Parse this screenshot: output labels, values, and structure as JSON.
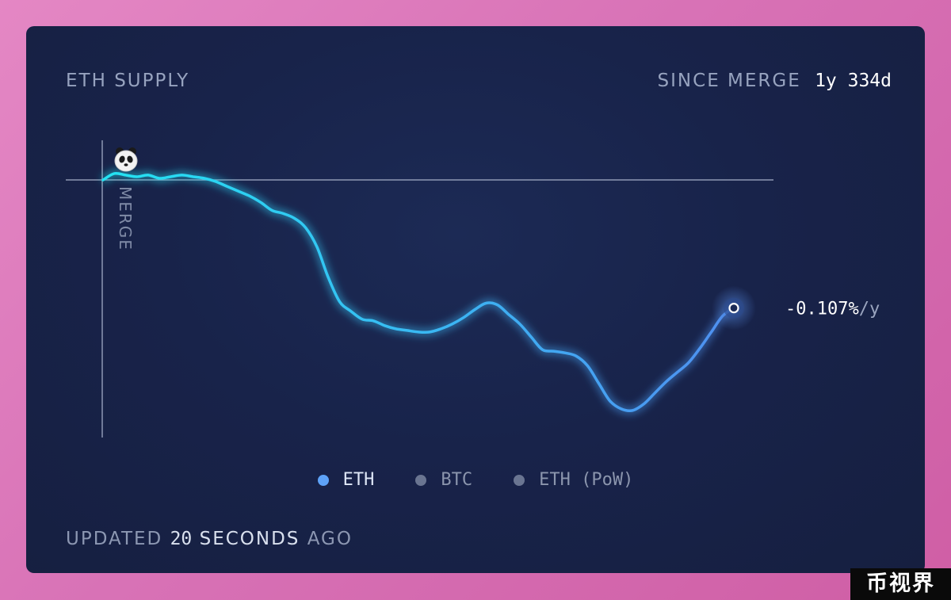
{
  "header": {
    "title": "ETH SUPPLY",
    "since_label": "SINCE MERGE",
    "since_value": "1y 334d"
  },
  "chart_data": {
    "type": "line",
    "series": [
      {
        "name": "ETH",
        "points": [
          [
            0,
            0.0
          ],
          [
            1,
            0.04
          ],
          [
            2,
            0.03
          ],
          [
            3,
            0.02
          ],
          [
            4,
            0.03
          ],
          [
            5,
            0.01
          ],
          [
            6,
            0.02
          ],
          [
            7,
            0.03
          ],
          [
            8,
            0.02
          ],
          [
            9,
            0.01
          ],
          [
            10,
            -0.01
          ],
          [
            11,
            -0.04
          ],
          [
            12,
            -0.07
          ],
          [
            13,
            -0.1
          ],
          [
            14,
            -0.14
          ],
          [
            15,
            -0.19
          ],
          [
            16,
            -0.21
          ],
          [
            17,
            -0.24
          ],
          [
            18,
            -0.3
          ],
          [
            19,
            -0.42
          ],
          [
            20,
            -0.61
          ],
          [
            21,
            -0.76
          ],
          [
            22,
            -0.82
          ],
          [
            23,
            -0.87
          ],
          [
            24,
            -0.88
          ],
          [
            25,
            -0.91
          ],
          [
            26,
            -0.93
          ],
          [
            27,
            -0.94
          ],
          [
            28,
            -0.95
          ],
          [
            29,
            -0.95
          ],
          [
            30,
            -0.93
          ],
          [
            31,
            -0.9
          ],
          [
            32,
            -0.86
          ],
          [
            33,
            -0.81
          ],
          [
            34,
            -0.77
          ],
          [
            35,
            -0.78
          ],
          [
            36,
            -0.84
          ],
          [
            37,
            -0.9
          ],
          [
            38,
            -0.98
          ],
          [
            39,
            -1.06
          ],
          [
            40,
            -1.07
          ],
          [
            41,
            -1.08
          ],
          [
            42,
            -1.1
          ],
          [
            43,
            -1.16
          ],
          [
            44,
            -1.27
          ],
          [
            45,
            -1.38
          ],
          [
            46,
            -1.43
          ],
          [
            47,
            -1.44
          ],
          [
            48,
            -1.4
          ],
          [
            49,
            -1.33
          ],
          [
            50,
            -1.26
          ],
          [
            51,
            -1.2
          ],
          [
            52,
            -1.14
          ],
          [
            53,
            -1.05
          ],
          [
            54,
            -0.95
          ],
          [
            55,
            -0.85
          ],
          [
            56,
            -0.8
          ]
        ],
        "end_label": "-0.107%",
        "end_unit": "/y"
      }
    ],
    "marker": "MERGE",
    "xlabel": "",
    "ylabel": "",
    "legend": [
      "ETH",
      "BTC",
      "ETH (PoW)"
    ],
    "active_series": "ETH",
    "legend_placement": "bottom-center",
    "grid": false
  },
  "legend": [
    {
      "label": "ETH",
      "color": "#5ea2f7",
      "active": true
    },
    {
      "label": "BTC",
      "color": "#6a7591",
      "active": false
    },
    {
      "label": "ETH (PoW)",
      "color": "#6a7591",
      "active": false
    }
  ],
  "footer": {
    "updated_prefix": "UPDATED",
    "updated_value": "20",
    "updated_unit": "SECONDS",
    "updated_suffix": "AGO"
  },
  "icons": {
    "merge_marker": "panda-icon",
    "end_point": "circle-endpoint-icon"
  },
  "watermark": "币视界",
  "colors": {
    "line_start": "#23e3f2",
    "line_end": "#4f8ff0",
    "accent": "#5ea2f7"
  }
}
